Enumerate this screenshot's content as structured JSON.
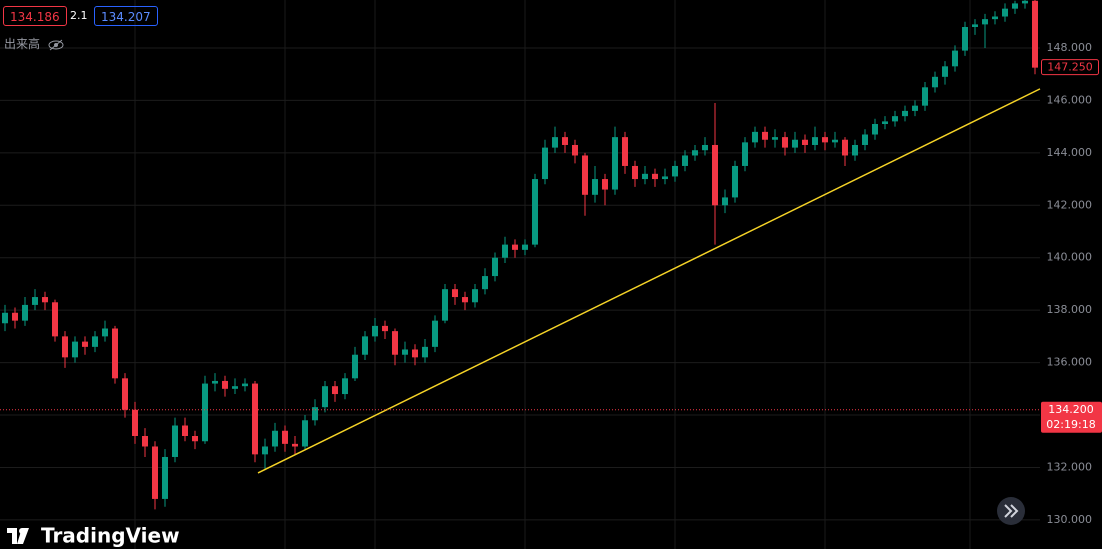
{
  "header": {
    "sell": "134.186",
    "spread": "2.1",
    "buy": "134.207",
    "volume_label": "出来高"
  },
  "watermark": "TradingView",
  "chart_data": {
    "type": "candlestick",
    "up_color": "#089981",
    "down_color": "#f23645",
    "xlim": [
      -0.5,
      103.5
    ],
    "ylim": [
      128.89,
      149.83
    ],
    "yticks": [
      {
        "value": 130,
        "label": "130.000"
      },
      {
        "value": 132,
        "label": "132.000"
      },
      {
        "value": 134,
        "label": "134.000"
      },
      {
        "value": 136,
        "label": "136.000"
      },
      {
        "value": 138,
        "label": "138.000"
      },
      {
        "value": 140,
        "label": "140.000"
      },
      {
        "value": 142,
        "label": "142.000"
      },
      {
        "value": 144,
        "label": "144.000"
      },
      {
        "value": 146,
        "label": "146.000"
      },
      {
        "value": 148,
        "label": "148.000"
      }
    ],
    "grid": true,
    "open": [
      137.5,
      137.9,
      137.6,
      138.2,
      138.5,
      138.3,
      137.0,
      136.2,
      136.8,
      136.6,
      137.0,
      137.3,
      135.4,
      134.2,
      133.2,
      132.8,
      130.8,
      132.4,
      133.6,
      133.2,
      133.0,
      135.2,
      135.3,
      135.0,
      135.1,
      135.2,
      132.5,
      132.8,
      133.4,
      132.9,
      132.8,
      133.8,
      134.3,
      135.1,
      134.8,
      135.4,
      136.3,
      137.0,
      137.4,
      137.2,
      136.3,
      136.5,
      136.2,
      136.6,
      137.6,
      138.8,
      138.5,
      138.3,
      138.8,
      139.3,
      140.0,
      140.5,
      140.3,
      140.5,
      143.0,
      144.2,
      144.6,
      144.3,
      143.9,
      142.4,
      143.0,
      142.6,
      144.6,
      143.5,
      143.0,
      143.2,
      143.0,
      143.1,
      143.5,
      143.9,
      144.1,
      144.3,
      142.0,
      142.3,
      143.5,
      144.4,
      144.8,
      144.5,
      144.6,
      144.2,
      144.5,
      144.3,
      144.6,
      144.4,
      144.5,
      143.9,
      144.3,
      144.7,
      145.1,
      145.2,
      145.4,
      145.6,
      145.8,
      146.5,
      146.9,
      147.3,
      147.9,
      148.8,
      148.9,
      149.1,
      149.2,
      149.5,
      149.7,
      149.8
    ],
    "high": [
      138.2,
      138.1,
      138.5,
      138.8,
      138.7,
      138.4,
      137.2,
      137.0,
      137.0,
      137.2,
      137.6,
      137.4,
      135.6,
      134.5,
      133.5,
      133.0,
      132.7,
      133.9,
      133.9,
      133.4,
      135.5,
      135.6,
      135.5,
      135.4,
      135.4,
      135.3,
      133.1,
      133.7,
      133.6,
      133.2,
      134.0,
      134.6,
      135.3,
      135.3,
      135.6,
      136.6,
      137.2,
      137.7,
      137.6,
      137.3,
      136.8,
      136.7,
      136.9,
      137.8,
      139.0,
      139.0,
      138.7,
      139.0,
      139.6,
      140.2,
      140.8,
      140.7,
      140.7,
      143.2,
      144.5,
      145.0,
      144.8,
      144.5,
      144.0,
      143.5,
      143.2,
      145.0,
      144.8,
      143.7,
      143.5,
      143.4,
      143.4,
      143.7,
      144.1,
      144.3,
      144.6,
      145.9,
      142.6,
      143.7,
      144.6,
      145.0,
      145.0,
      144.9,
      144.8,
      144.8,
      144.7,
      145.0,
      144.8,
      144.8,
      144.6,
      144.5,
      144.9,
      145.3,
      145.4,
      145.6,
      145.8,
      146.0,
      146.7,
      147.1,
      147.5,
      148.1,
      149.0,
      149.1,
      149.3,
      149.4,
      149.7,
      149.8,
      149.9,
      149.9
    ],
    "low": [
      137.2,
      137.3,
      137.4,
      138.0,
      138.0,
      136.8,
      135.8,
      136.0,
      136.3,
      136.4,
      136.8,
      135.2,
      133.9,
      132.9,
      132.4,
      130.4,
      130.5,
      132.2,
      133.0,
      132.7,
      132.9,
      134.9,
      134.7,
      134.8,
      134.9,
      132.2,
      131.9,
      132.6,
      132.6,
      132.5,
      132.7,
      133.6,
      134.1,
      134.5,
      134.6,
      135.3,
      136.1,
      136.8,
      136.9,
      135.9,
      136.0,
      135.9,
      136.0,
      136.4,
      137.5,
      138.2,
      138.0,
      138.1,
      138.6,
      139.1,
      139.8,
      140.0,
      140.1,
      140.4,
      142.8,
      144.0,
      144.0,
      143.6,
      141.6,
      142.1,
      142.0,
      142.4,
      143.2,
      142.7,
      142.8,
      142.7,
      142.8,
      142.9,
      143.3,
      143.7,
      143.9,
      140.5,
      141.7,
      142.1,
      143.3,
      144.2,
      144.2,
      144.2,
      143.9,
      144.0,
      144.0,
      144.1,
      144.1,
      144.2,
      143.5,
      143.7,
      144.1,
      144.5,
      144.9,
      145.0,
      145.2,
      145.4,
      145.6,
      146.3,
      146.6,
      147.1,
      147.7,
      148.5,
      148.0,
      148.9,
      149.0,
      149.3,
      149.5,
      147.0
    ],
    "close": [
      137.9,
      137.6,
      138.2,
      138.5,
      138.3,
      137.0,
      136.2,
      136.8,
      136.6,
      137.0,
      137.3,
      135.4,
      134.2,
      133.2,
      132.8,
      130.8,
      132.4,
      133.6,
      133.2,
      133.0,
      135.2,
      135.3,
      135.0,
      135.1,
      135.2,
      132.5,
      132.8,
      133.4,
      132.9,
      132.8,
      133.8,
      134.3,
      135.1,
      134.8,
      135.4,
      136.3,
      137.0,
      137.4,
      137.2,
      136.3,
      136.5,
      136.2,
      136.6,
      137.6,
      138.8,
      138.5,
      138.3,
      138.8,
      139.3,
      140.0,
      140.5,
      140.3,
      140.5,
      143.0,
      144.2,
      144.6,
      144.3,
      143.9,
      142.4,
      143.0,
      142.6,
      144.6,
      143.5,
      143.0,
      143.2,
      143.0,
      143.1,
      143.5,
      143.9,
      144.1,
      144.3,
      142.0,
      142.3,
      143.5,
      144.4,
      144.8,
      144.5,
      144.6,
      144.2,
      144.5,
      144.3,
      144.6,
      144.4,
      144.5,
      143.9,
      144.3,
      144.7,
      145.1,
      145.2,
      145.4,
      145.6,
      145.8,
      146.5,
      146.9,
      147.3,
      147.9,
      148.8,
      148.9,
      149.1,
      149.2,
      149.5,
      149.7,
      149.8,
      147.25
    ],
    "trendline": {
      "x": [
        25.3,
        103.5
      ],
      "y": [
        131.79,
        146.44
      ],
      "color": "#f5d327"
    },
    "price_marker": {
      "value": 147.25,
      "label": "147.250"
    },
    "price_line": {
      "value": 134.2,
      "label": "134.200",
      "countdown": "02:19:18"
    }
  }
}
